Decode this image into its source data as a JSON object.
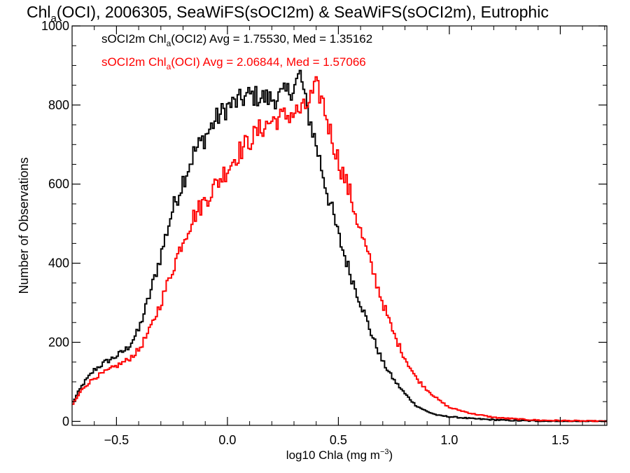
{
  "chart_data": {
    "type": "line",
    "title": {
      "pre": "Chl",
      "sub": "a",
      "post": "(OCI), 2006305, SeaWiFS(sOCI2m) & SeaWiFS(sOCI2m), Eutrophic"
    },
    "xlabel": {
      "pre": "log10 Chla (mg m",
      "sup": "−3",
      "post": ")"
    },
    "ylabel": "Number of Observations",
    "xlim": [
      -0.7,
      1.71
    ],
    "ylim": [
      -10,
      1000
    ],
    "xticks": [
      -0.5,
      0.0,
      0.5,
      1.0,
      1.5
    ],
    "xtick_labels": [
      "−0.5",
      "0.0",
      "0.5",
      "1.0",
      "1.5"
    ],
    "yticks": [
      0,
      200,
      400,
      600,
      800,
      1000
    ],
    "ytick_labels": [
      "0",
      "200",
      "400",
      "600",
      "800",
      "1000"
    ],
    "step_style": "histogram-steps",
    "series": [
      {
        "legend": {
          "pre": "sOCI2m Chl",
          "sub": "a",
          "post": "(OCI2) Avg = 1.75530, Med = 1.35162"
        },
        "color": "#000000",
        "points": [
          [
            -0.7,
            45
          ],
          [
            -0.65,
            95
          ],
          [
            -0.6,
            130
          ],
          [
            -0.55,
            150
          ],
          [
            -0.5,
            165
          ],
          [
            -0.45,
            185
          ],
          [
            -0.4,
            230
          ],
          [
            -0.35,
            320
          ],
          [
            -0.3,
            420
          ],
          [
            -0.25,
            530
          ],
          [
            -0.2,
            610
          ],
          [
            -0.15,
            680
          ],
          [
            -0.1,
            720
          ],
          [
            -0.05,
            765
          ],
          [
            0.0,
            795
          ],
          [
            0.05,
            810
          ],
          [
            0.1,
            825
          ],
          [
            0.15,
            820
          ],
          [
            0.2,
            815
          ],
          [
            0.25,
            825
          ],
          [
            0.3,
            845
          ],
          [
            0.33,
            880
          ],
          [
            0.35,
            810
          ],
          [
            0.4,
            700
          ],
          [
            0.45,
            580
          ],
          [
            0.5,
            470
          ],
          [
            0.55,
            380
          ],
          [
            0.6,
            300
          ],
          [
            0.65,
            220
          ],
          [
            0.7,
            150
          ],
          [
            0.75,
            105
          ],
          [
            0.8,
            70
          ],
          [
            0.85,
            40
          ],
          [
            0.9,
            25
          ],
          [
            0.95,
            15
          ],
          [
            1.0,
            12
          ],
          [
            1.1,
            7
          ],
          [
            1.2,
            4
          ],
          [
            1.3,
            2
          ],
          [
            1.4,
            1
          ],
          [
            1.5,
            0
          ],
          [
            1.6,
            0
          ],
          [
            1.71,
            0
          ]
        ]
      },
      {
        "legend": {
          "pre": "sOCI2m Chl",
          "sub": "a",
          "post": "(OCI) Avg = 2.06844, Med = 1.57066"
        },
        "color": "#ff0000",
        "points": [
          [
            -0.7,
            40
          ],
          [
            -0.65,
            85
          ],
          [
            -0.6,
            110
          ],
          [
            -0.55,
            125
          ],
          [
            -0.5,
            140
          ],
          [
            -0.45,
            155
          ],
          [
            -0.4,
            180
          ],
          [
            -0.35,
            230
          ],
          [
            -0.3,
            300
          ],
          [
            -0.25,
            380
          ],
          [
            -0.2,
            460
          ],
          [
            -0.15,
            520
          ],
          [
            -0.1,
            560
          ],
          [
            -0.05,
            600
          ],
          [
            0.0,
            640
          ],
          [
            0.05,
            680
          ],
          [
            0.1,
            710
          ],
          [
            0.15,
            740
          ],
          [
            0.2,
            760
          ],
          [
            0.25,
            770
          ],
          [
            0.3,
            780
          ],
          [
            0.35,
            790
          ],
          [
            0.4,
            845
          ],
          [
            0.43,
            810
          ],
          [
            0.45,
            760
          ],
          [
            0.5,
            660
          ],
          [
            0.55,
            580
          ],
          [
            0.6,
            480
          ],
          [
            0.65,
            390
          ],
          [
            0.7,
            300
          ],
          [
            0.75,
            220
          ],
          [
            0.8,
            160
          ],
          [
            0.85,
            110
          ],
          [
            0.9,
            80
          ],
          [
            0.95,
            55
          ],
          [
            1.0,
            35
          ],
          [
            1.1,
            20
          ],
          [
            1.2,
            10
          ],
          [
            1.3,
            6
          ],
          [
            1.4,
            3
          ],
          [
            1.5,
            2
          ],
          [
            1.6,
            1
          ],
          [
            1.71,
            0
          ]
        ]
      }
    ]
  }
}
